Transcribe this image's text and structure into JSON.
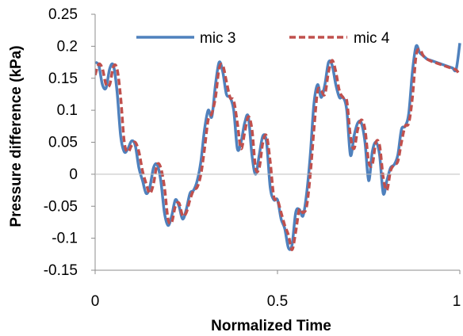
{
  "chart_data": {
    "type": "line",
    "xlabel": "Normalized Time",
    "ylabel": "Pressure difference (kPa)",
    "xlim": [
      0,
      1
    ],
    "ylim": [
      -0.15,
      0.25
    ],
    "xticks": [
      0,
      0.5,
      1
    ],
    "xtick_labels": [
      "0",
      "0.5",
      "1"
    ],
    "yticks": [
      0.25,
      0.2,
      0.15,
      0.1,
      0.05,
      0,
      -0.05,
      -0.1,
      -0.15
    ],
    "ytick_labels": [
      "0.25",
      "0.2",
      "0.15",
      "0.1",
      "0.05",
      "0",
      "-0.05",
      "-0.1",
      "-0.15"
    ],
    "grid": false,
    "zero_line": true,
    "legend_position": "top",
    "series": [
      {
        "name": "mic 3",
        "color": "#4F81BD",
        "style": "solid",
        "x": [
          0,
          0.01,
          0.02,
          0.03,
          0.04,
          0.05,
          0.06,
          0.07,
          0.08,
          0.09,
          0.1,
          0.11,
          0.12,
          0.13,
          0.14,
          0.15,
          0.16,
          0.17,
          0.18,
          0.19,
          0.2,
          0.21,
          0.22,
          0.23,
          0.24,
          0.25,
          0.26,
          0.27,
          0.28,
          0.29,
          0.3,
          0.31,
          0.32,
          0.33,
          0.34,
          0.35,
          0.36,
          0.37,
          0.38,
          0.39,
          0.4,
          0.41,
          0.42,
          0.43,
          0.44,
          0.45,
          0.46,
          0.47,
          0.48,
          0.49,
          0.5,
          0.51,
          0.52,
          0.53,
          0.54,
          0.55,
          0.56,
          0.57,
          0.58,
          0.59,
          0.6,
          0.61,
          0.62,
          0.63,
          0.64,
          0.65,
          0.66,
          0.67,
          0.68,
          0.69,
          0.7,
          0.71,
          0.72,
          0.73,
          0.74,
          0.75,
          0.76,
          0.77,
          0.78,
          0.79,
          0.8,
          0.81,
          0.82,
          0.83,
          0.84,
          0.85,
          0.86,
          0.87,
          0.88,
          0.89,
          0.9,
          0.91,
          0.92,
          0.93,
          0.94,
          0.95,
          0.96,
          0.97,
          0.98,
          0.99,
          1.0
        ],
        "y": [
          0.175,
          0.17,
          0.14,
          0.135,
          0.165,
          0.17,
          0.13,
          0.06,
          0.035,
          0.04,
          0.052,
          0.045,
          0.01,
          -0.01,
          -0.03,
          -0.02,
          0.01,
          0.015,
          -0.01,
          -0.06,
          -0.08,
          -0.065,
          -0.04,
          -0.05,
          -0.07,
          -0.055,
          -0.03,
          -0.025,
          -0.01,
          0.02,
          0.07,
          0.1,
          0.09,
          0.14,
          0.175,
          0.16,
          0.125,
          0.12,
          0.1,
          0.04,
          0.05,
          0.08,
          0.09,
          0.03,
          0.0,
          0.03,
          0.06,
          0.05,
          -0.02,
          -0.04,
          -0.04,
          -0.07,
          -0.085,
          -0.115,
          -0.11,
          -0.06,
          -0.055,
          -0.065,
          -0.03,
          0.03,
          0.11,
          0.14,
          0.12,
          0.14,
          0.175,
          0.17,
          0.14,
          0.12,
          0.12,
          0.1,
          0.03,
          0.06,
          0.08,
          0.08,
          0.05,
          -0.01,
          0.035,
          0.05,
          0.03,
          -0.03,
          -0.01,
          0.01,
          0.015,
          0.03,
          0.07,
          0.075,
          0.095,
          0.16,
          0.2,
          0.19,
          0.185,
          0.18,
          0.178,
          0.176,
          0.174,
          0.172,
          0.17,
          0.168,
          0.166,
          0.164,
          0.205
        ]
      },
      {
        "name": "mic 4",
        "color": "#C0504D",
        "style": "dashed",
        "x": [
          0,
          0.01,
          0.02,
          0.03,
          0.04,
          0.05,
          0.06,
          0.07,
          0.08,
          0.09,
          0.1,
          0.11,
          0.12,
          0.13,
          0.14,
          0.15,
          0.16,
          0.17,
          0.18,
          0.19,
          0.2,
          0.21,
          0.22,
          0.23,
          0.24,
          0.25,
          0.26,
          0.27,
          0.28,
          0.29,
          0.3,
          0.31,
          0.32,
          0.33,
          0.34,
          0.35,
          0.36,
          0.37,
          0.38,
          0.39,
          0.4,
          0.41,
          0.42,
          0.43,
          0.44,
          0.45,
          0.46,
          0.47,
          0.48,
          0.49,
          0.5,
          0.51,
          0.52,
          0.53,
          0.54,
          0.55,
          0.56,
          0.57,
          0.58,
          0.59,
          0.6,
          0.61,
          0.62,
          0.63,
          0.64,
          0.65,
          0.66,
          0.67,
          0.68,
          0.69,
          0.7,
          0.71,
          0.72,
          0.73,
          0.74,
          0.75,
          0.76,
          0.77,
          0.78,
          0.79,
          0.8,
          0.81,
          0.82,
          0.83,
          0.84,
          0.85,
          0.86,
          0.87,
          0.88,
          0.89,
          0.9,
          0.91,
          0.92,
          0.93,
          0.94,
          0.95,
          0.96,
          0.97,
          0.98,
          0.99,
          1.0
        ],
        "y": [
          0.155,
          0.172,
          0.165,
          0.14,
          0.14,
          0.168,
          0.165,
          0.12,
          0.05,
          0.035,
          0.045,
          0.05,
          0.035,
          0.005,
          -0.015,
          -0.03,
          -0.015,
          0.015,
          0.01,
          -0.02,
          -0.07,
          -0.075,
          -0.05,
          -0.045,
          -0.065,
          -0.06,
          -0.04,
          -0.025,
          -0.02,
          0.0,
          0.04,
          0.085,
          0.095,
          0.12,
          0.165,
          0.17,
          0.145,
          0.12,
          0.115,
          0.08,
          0.04,
          0.065,
          0.09,
          0.07,
          0.01,
          0.01,
          0.05,
          0.06,
          0.02,
          -0.035,
          -0.04,
          -0.06,
          -0.08,
          -0.095,
          -0.118,
          -0.09,
          -0.055,
          -0.06,
          -0.05,
          0.0,
          0.07,
          0.13,
          0.13,
          0.125,
          0.16,
          0.178,
          0.16,
          0.13,
          0.12,
          0.115,
          0.06,
          0.04,
          0.07,
          0.085,
          0.07,
          0.02,
          0.015,
          0.05,
          0.045,
          -0.005,
          -0.025,
          0.005,
          0.015,
          0.02,
          0.05,
          0.075,
          0.08,
          0.12,
          0.185,
          0.195,
          0.185,
          0.18,
          0.177,
          0.175,
          0.173,
          0.171,
          0.169,
          0.167,
          0.165,
          0.163,
          0.155
        ]
      }
    ]
  }
}
